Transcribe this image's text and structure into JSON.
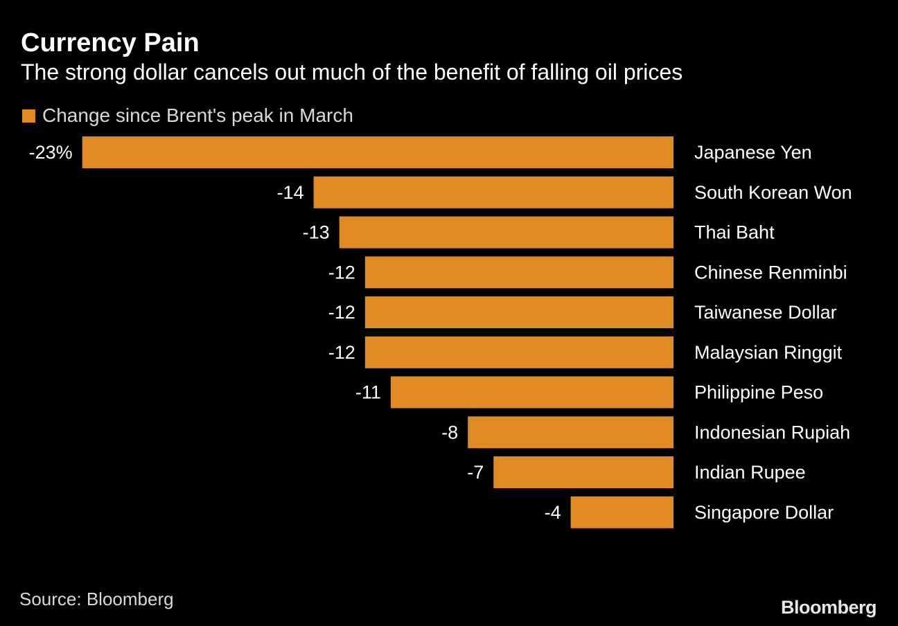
{
  "colors": {
    "bar": "#e08a24",
    "background": "#000000",
    "text": "#ffffff",
    "muted": "#d9d9d9"
  },
  "header": {
    "title": "Currency Pain",
    "subtitle": "The strong dollar cancels out much of the benefit of falling oil prices"
  },
  "legend": {
    "label": "Change since Brent's peak in March"
  },
  "chart_data": {
    "type": "bar",
    "orientation": "horizontal",
    "title": "Currency Pain",
    "subtitle": "The strong dollar cancels out much of the benefit of falling oil prices",
    "xlabel": "",
    "ylabel": "",
    "unit": "%",
    "categories": [
      "Japanese Yen",
      "South Korean Won",
      "Thai Baht",
      "Chinese Renminbi",
      "Taiwanese Dollar",
      "Malaysian Ringgit",
      "Philippine Peso",
      "Indonesian Rupiah",
      "Indian Rupee",
      "Singapore Dollar"
    ],
    "series": [
      {
        "name": "Change since Brent's peak in March",
        "values": [
          -23,
          -14,
          -13,
          -12,
          -12,
          -12,
          -11,
          -8,
          -7,
          -4
        ]
      }
    ],
    "value_labels": [
      "-23%",
      "-14",
      "-13",
      "-12",
      "-12",
      "-12",
      "-11",
      "-8",
      "-7",
      "-4"
    ],
    "xlim": [
      -23,
      0
    ],
    "grid": false,
    "legend_position": "top-left"
  },
  "footer": {
    "source": "Source: Bloomberg",
    "brand": "Bloomberg"
  }
}
